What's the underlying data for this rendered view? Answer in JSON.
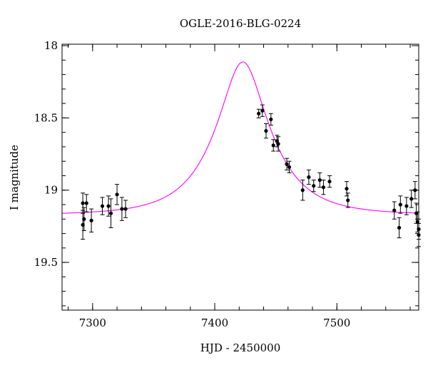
{
  "chart_data": {
    "type": "scatter",
    "title": "OGLE-2016-BLG-0224",
    "xlabel": "HJD - 2450000",
    "ylabel": "I magnitude",
    "xlim": [
      7275,
      7567
    ],
    "ylim": [
      19.83,
      17.99
    ],
    "y_inverted": true,
    "x_major_ticks": [
      7300,
      7400,
      7500
    ],
    "x_minor_step": 20,
    "y_major_ticks": [
      18,
      18.5,
      19,
      19.5
    ],
    "y_major_tick_labels": [
      "18",
      "18.5",
      "19",
      "19.5"
    ],
    "y_minor_step": 0.1,
    "grid": false,
    "legend": "none",
    "colors": {
      "points": "#000000",
      "model": "#ff00ff"
    },
    "model": {
      "type": "microlensing_fit",
      "t0": 7423,
      "u0": 0.4,
      "tE": 42,
      "baseline_mag": 19.17
    },
    "series": [
      {
        "points": [
          {
            "x": 7292,
            "y": 19.09,
            "err": 0.07
          },
          {
            "x": 7292,
            "y": 19.24,
            "err": 0.1
          },
          {
            "x": 7293,
            "y": 19.2,
            "err": 0.08
          },
          {
            "x": 7295,
            "y": 19.09,
            "err": 0.06
          },
          {
            "x": 7299,
            "y": 19.21,
            "err": 0.08
          },
          {
            "x": 7308,
            "y": 19.11,
            "err": 0.06
          },
          {
            "x": 7313,
            "y": 19.11,
            "err": 0.07
          },
          {
            "x": 7315,
            "y": 19.16,
            "err": 0.1
          },
          {
            "x": 7320,
            "y": 19.03,
            "err": 0.07
          },
          {
            "x": 7324,
            "y": 19.13,
            "err": 0.08
          },
          {
            "x": 7327,
            "y": 19.13,
            "err": 0.06
          },
          {
            "x": 7436,
            "y": 18.47,
            "err": 0.03
          },
          {
            "x": 7439,
            "y": 18.45,
            "err": 0.04
          },
          {
            "x": 7442,
            "y": 18.59,
            "err": 0.05
          },
          {
            "x": 7446,
            "y": 18.51,
            "err": 0.04
          },
          {
            "x": 7448,
            "y": 18.69,
            "err": 0.04
          },
          {
            "x": 7451,
            "y": 18.66,
            "err": 0.04
          },
          {
            "x": 7452,
            "y": 18.68,
            "err": 0.05
          },
          {
            "x": 7459,
            "y": 18.82,
            "err": 0.04
          },
          {
            "x": 7461,
            "y": 18.84,
            "err": 0.04
          },
          {
            "x": 7472,
            "y": 19.0,
            "err": 0.07
          },
          {
            "x": 7477,
            "y": 18.91,
            "err": 0.05
          },
          {
            "x": 7481,
            "y": 18.97,
            "err": 0.04
          },
          {
            "x": 7486,
            "y": 18.93,
            "err": 0.05
          },
          {
            "x": 7489,
            "y": 18.98,
            "err": 0.05
          },
          {
            "x": 7494,
            "y": 18.94,
            "err": 0.04
          },
          {
            "x": 7508,
            "y": 18.99,
            "err": 0.05
          },
          {
            "x": 7509,
            "y": 19.07,
            "err": 0.05
          },
          {
            "x": 7547,
            "y": 19.14,
            "err": 0.06
          },
          {
            "x": 7551,
            "y": 19.26,
            "err": 0.07
          },
          {
            "x": 7552,
            "y": 19.1,
            "err": 0.06
          },
          {
            "x": 7557,
            "y": 19.11,
            "err": 0.06
          },
          {
            "x": 7561,
            "y": 19.06,
            "err": 0.06
          },
          {
            "x": 7564,
            "y": 19.0,
            "err": 0.06
          },
          {
            "x": 7565,
            "y": 19.16,
            "err": 0.07
          },
          {
            "x": 7566,
            "y": 19.22,
            "err": 0.07
          },
          {
            "x": 7567,
            "y": 19.27,
            "err": 0.07
          },
          {
            "x": 7567,
            "y": 19.31,
            "err": 0.08
          }
        ]
      }
    ]
  }
}
